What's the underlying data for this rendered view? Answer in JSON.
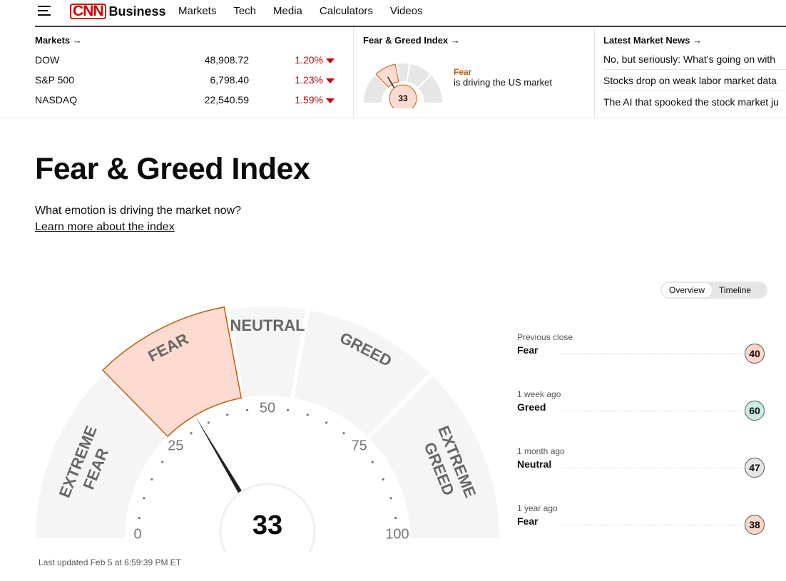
{
  "nav": {
    "brand_mark": "CNN",
    "brand": "Business",
    "links": [
      "Markets",
      "Tech",
      "Media",
      "Calculators",
      "Videos"
    ]
  },
  "strip": {
    "markets_title": "Markets →",
    "markets": [
      {
        "name": "DOW",
        "value": "48,908.72",
        "change": "1.20%"
      },
      {
        "name": "S&P 500",
        "value": "6,798.40",
        "change": "1.23%"
      },
      {
        "name": "NASDAQ",
        "value": "22,540.59",
        "change": "1.59%"
      }
    ],
    "fg_title": "Fear & Greed Index →",
    "fg_state": "Fear",
    "fg_caption": "is driving the US market",
    "fg_value": "33",
    "news_title": "Latest Market News →",
    "news": [
      "No, but seriously: What’s going on with",
      "Stocks drop on weak labor market data",
      "The AI that spooked the stock market ju"
    ]
  },
  "main": {
    "title": "Fear & Greed Index",
    "subtitle": "What emotion is driving the market now?",
    "learn_more": "Learn more about the index",
    "toggle": [
      "Overview",
      "Timeline"
    ],
    "last_updated": "Last updated Feb 5 at 6:59:39 PM ET"
  },
  "gauge": {
    "value": "33",
    "value_num": 33,
    "segments": {
      "extreme_fear_1": "EXTREME",
      "extreme_fear_2": "FEAR",
      "fear": "FEAR",
      "neutral": "NEUTRAL",
      "greed": "GREED",
      "extreme_greed_1": "EXTREME",
      "extreme_greed_2": "GREED"
    },
    "ticks": [
      "0",
      "25",
      "50",
      "75",
      "100"
    ]
  },
  "history": [
    {
      "when": "Previous close",
      "state": "Fear",
      "value": "40",
      "color": "#fcd6c8"
    },
    {
      "when": "1 week ago",
      "state": "Greed",
      "value": "60",
      "color": "#c8ede4"
    },
    {
      "when": "1 month ago",
      "state": "Neutral",
      "value": "47",
      "color": "#e6e6e6"
    },
    {
      "when": "1 year ago",
      "state": "Fear",
      "value": "38",
      "color": "#fcd6c8"
    }
  ],
  "colors": {
    "accent_red": "#cc0000",
    "fear_fill": "#fddbd0",
    "fear_stroke": "#c05d0c",
    "segment_fill": "#f5f5f5"
  }
}
